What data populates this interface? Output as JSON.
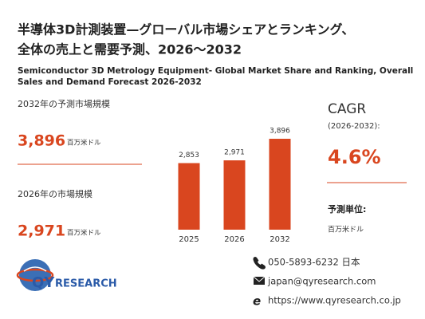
{
  "title": [
    "半導体3D計測装置—グローバル市場シェアとランキング、",
    "全体の売上と需要予測、2026～2032"
  ],
  "subtitle": [
    "Semiconductor 3D Metrology Equipment- Global Market Share and Ranking, Overall",
    "Sales and Demand Forecast 2026-2032"
  ],
  "forecast": {
    "label": "2032年の予測市場規模",
    "value": "3,896",
    "unit": "百万米ドル"
  },
  "current": {
    "label": "2026年の市場規模",
    "value": "2,971",
    "unit": "百万米ドル"
  },
  "cagr": {
    "label": "CAGR",
    "period": "(2026-2032):",
    "value": "4.6%"
  },
  "unit_block": {
    "label": "予測単位:",
    "value": "百万米ドル"
  },
  "chart_data": {
    "type": "bar",
    "categories": [
      "2025",
      "2026",
      "2032"
    ],
    "values": [
      2853,
      2971,
      3896
    ],
    "value_labels": [
      "2,853",
      "2,971",
      "3,896"
    ],
    "color": "#d9461f"
  },
  "logo": {
    "mark": "QY",
    "text": "RESEARCH"
  },
  "contact": {
    "phone": "050-5893-6232 日本",
    "email": "japan@qyresearch.com",
    "web": "https://www.qyresearch.co.jp"
  }
}
